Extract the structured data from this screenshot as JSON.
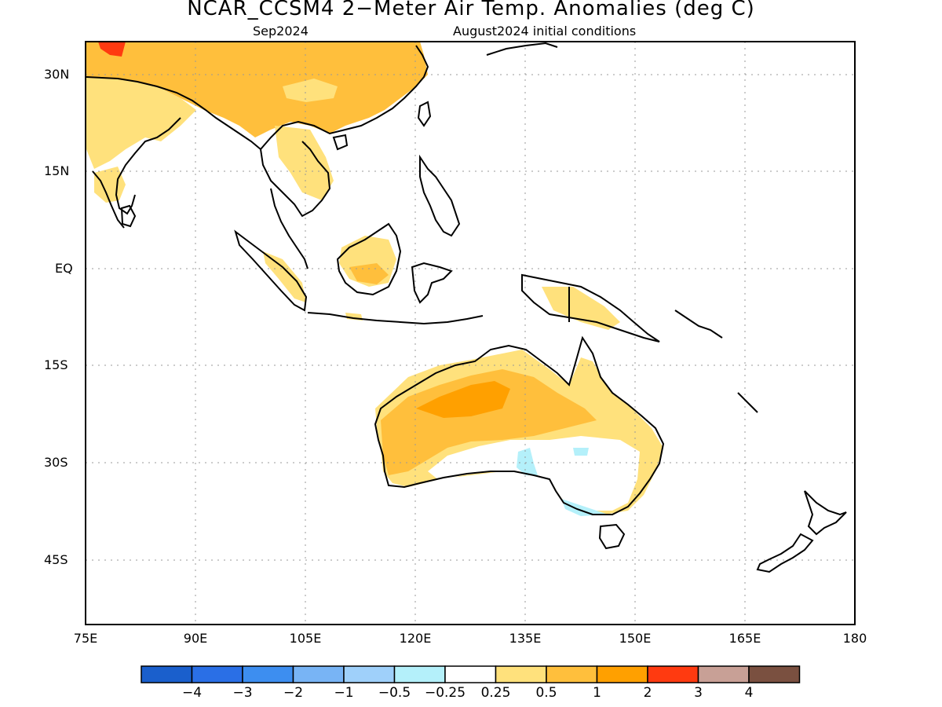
{
  "title": "NCAR_CCSM4 2−Meter Air Temp. Anomalies (deg C)",
  "subtitle_left": "Sep2024",
  "subtitle_right": "August2024 initial conditions",
  "lat_labels": [
    "30N",
    "15N",
    "EQ",
    "15S",
    "30S",
    "45S"
  ],
  "lon_labels": [
    "75E",
    "90E",
    "105E",
    "120E",
    "135E",
    "150E",
    "165E",
    "180"
  ],
  "colorbar": {
    "colors": [
      "#1a5fcc",
      "#2a6fe6",
      "#3d8ef0",
      "#78b4f5",
      "#9fd0fa",
      "#b4f0fa",
      "#ffffff",
      "#ffe17c",
      "#ffbf3c",
      "#ffa000",
      "#ff3a10",
      "#c8a096",
      "#7a5040"
    ],
    "labels": [
      "−4",
      "−3",
      "−2",
      "−1",
      "−0.5",
      "−0.25",
      "0.25",
      "0.5",
      "1",
      "2",
      "3",
      "4"
    ]
  },
  "colors": {
    "light_orange": "#ffe17c",
    "orange": "#ffbf3c",
    "dark_orange": "#ffa000",
    "red": "#ff3a10",
    "light_blue": "#b4f0fa",
    "blue": "#9fd0fa"
  }
}
